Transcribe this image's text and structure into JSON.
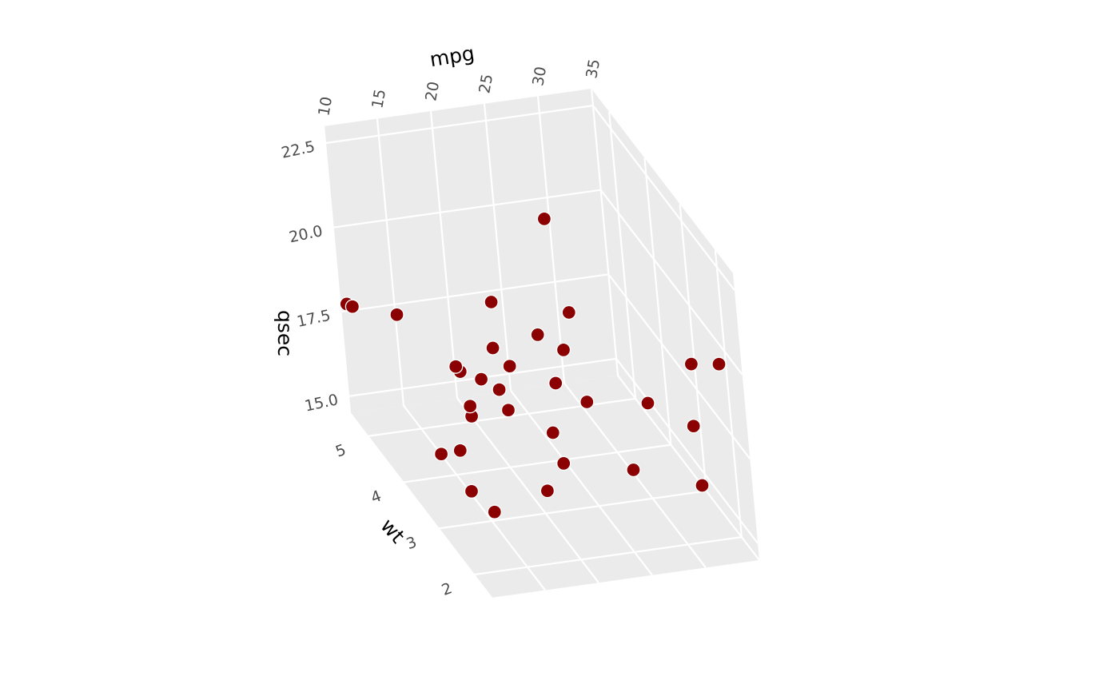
{
  "chart_data": {
    "type": "scatter",
    "dimensions": "3d",
    "axes": {
      "x": {
        "label": "mpg",
        "ticks": [
          "10",
          "15",
          "20",
          "25",
          "30",
          "35"
        ],
        "range": [
          10,
          35
        ]
      },
      "y": {
        "label": "wt",
        "ticks": [
          "2",
          "3",
          "4",
          "5"
        ],
        "range": [
          1.5,
          5.5
        ]
      },
      "z": {
        "label": "qsec",
        "ticks": [
          "15.0",
          "17.5",
          "20.0",
          "22.5"
        ],
        "range": [
          14.5,
          23.0
        ]
      }
    },
    "grid": true,
    "panel_color": "#ebebeb",
    "point_color": "#8b0000",
    "points": [
      {
        "mpg": 21.0,
        "wt": 2.62,
        "qsec": 16.46
      },
      {
        "mpg": 21.0,
        "wt": 2.875,
        "qsec": 17.02
      },
      {
        "mpg": 22.8,
        "wt": 2.32,
        "qsec": 18.61
      },
      {
        "mpg": 21.4,
        "wt": 3.215,
        "qsec": 19.44
      },
      {
        "mpg": 18.7,
        "wt": 3.44,
        "qsec": 17.02
      },
      {
        "mpg": 18.1,
        "wt": 3.46,
        "qsec": 20.22
      },
      {
        "mpg": 14.3,
        "wt": 3.57,
        "qsec": 15.84
      },
      {
        "mpg": 24.4,
        "wt": 3.19,
        "qsec": 20.0
      },
      {
        "mpg": 22.8,
        "wt": 3.15,
        "qsec": 22.9
      },
      {
        "mpg": 19.2,
        "wt": 3.44,
        "qsec": 18.3
      },
      {
        "mpg": 17.8,
        "wt": 3.44,
        "qsec": 18.9
      },
      {
        "mpg": 16.4,
        "wt": 4.07,
        "qsec": 17.4
      },
      {
        "mpg": 17.3,
        "wt": 3.73,
        "qsec": 17.6
      },
      {
        "mpg": 15.2,
        "wt": 3.78,
        "qsec": 18.0
      },
      {
        "mpg": 10.4,
        "wt": 5.25,
        "qsec": 17.98
      },
      {
        "mpg": 10.4,
        "wt": 5.424,
        "qsec": 17.82
      },
      {
        "mpg": 14.7,
        "wt": 5.345,
        "qsec": 17.42
      },
      {
        "mpg": 32.4,
        "wt": 2.2,
        "qsec": 19.47
      },
      {
        "mpg": 30.4,
        "wt": 1.615,
        "qsec": 18.52
      },
      {
        "mpg": 33.9,
        "wt": 1.835,
        "qsec": 19.9
      },
      {
        "mpg": 21.5,
        "wt": 2.465,
        "qsec": 20.01
      },
      {
        "mpg": 15.5,
        "wt": 3.52,
        "qsec": 16.87
      },
      {
        "mpg": 15.2,
        "wt": 3.435,
        "qsec": 17.3
      },
      {
        "mpg": 13.3,
        "wt": 3.84,
        "qsec": 15.41
      },
      {
        "mpg": 19.2,
        "wt": 3.845,
        "qsec": 17.05
      },
      {
        "mpg": 27.3,
        "wt": 1.935,
        "qsec": 18.9
      },
      {
        "mpg": 26.0,
        "wt": 2.14,
        "qsec": 16.7
      },
      {
        "mpg": 30.4,
        "wt": 1.513,
        "qsec": 16.9
      },
      {
        "mpg": 15.8,
        "wt": 3.17,
        "qsec": 14.5
      },
      {
        "mpg": 19.7,
        "wt": 2.77,
        "qsec": 15.5
      },
      {
        "mpg": 15.0,
        "wt": 3.57,
        "qsec": 14.6
      },
      {
        "mpg": 21.4,
        "wt": 2.78,
        "qsec": 18.6
      }
    ]
  }
}
